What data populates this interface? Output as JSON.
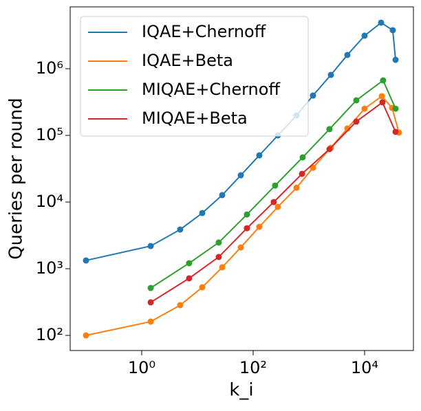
{
  "chart_data": {
    "type": "line",
    "xlabel": "k_i",
    "ylabel": "Queries per round",
    "xscale": "log",
    "yscale": "log",
    "xlim": [
      0.052,
      75300
    ],
    "ylim": [
      59.3,
      8470000
    ],
    "xticks": [
      {
        "value": 1,
        "label": "10⁰"
      },
      {
        "value": 100,
        "label": "10²"
      },
      {
        "value": 10000,
        "label": "10⁴"
      }
    ],
    "yticks": [
      {
        "value": 100,
        "label": "10²"
      },
      {
        "value": 1000,
        "label": "10³"
      },
      {
        "value": 10000,
        "label": "10⁴"
      },
      {
        "value": 100000,
        "label": "10⁵"
      },
      {
        "value": 1000000,
        "label": "10⁶"
      }
    ],
    "legend": "upper left",
    "series": [
      {
        "name": "IQAE+Chernoff",
        "color": "#1f77b4",
        "x": [
          0.1,
          1.45,
          4.9,
          12.2,
          27.8,
          60,
          129,
          278,
          600,
          1186,
          2483,
          4911,
          10000,
          19770,
          32060,
          35970
        ],
        "values": [
          1330,
          2190,
          3870,
          6840,
          12700,
          25200,
          50200,
          100000,
          199000,
          396000,
          807000,
          1610000,
          3130000,
          4910000,
          3780000,
          1360000
        ]
      },
      {
        "name": "IQAE+Beta",
        "color": "#ff7f0e",
        "x": [
          0.1,
          1.45,
          4.9,
          12.2,
          27.8,
          60,
          129,
          278,
          600,
          1186,
          2483,
          4911,
          10000,
          20400,
          31200,
          41400
        ],
        "values": [
          100,
          161,
          284,
          527,
          1050,
          2090,
          4250,
          8480,
          16400,
          32700,
          65200,
          127000,
          252000,
          387000,
          258000,
          110000
        ]
      },
      {
        "name": "MIQAE+Chernoff",
        "color": "#2ca02c",
        "x": [
          1.45,
          7.1,
          24.1,
          77.4,
          248,
          774,
          2346,
          7110,
          21500,
          35970
        ],
        "values": [
          514,
          1210,
          2470,
          6510,
          17700,
          46800,
          124000,
          336000,
          668000,
          252000
        ]
      },
      {
        "name": "MIQAE+Beta",
        "color": "#d62728",
        "x": [
          1.45,
          7.1,
          24.1,
          77.4,
          234,
          753,
          2346,
          7110,
          20900,
          35970
        ],
        "values": [
          313,
          718,
          1500,
          4050,
          10000,
          26500,
          62200,
          161000,
          313000,
          113000
        ]
      }
    ]
  }
}
